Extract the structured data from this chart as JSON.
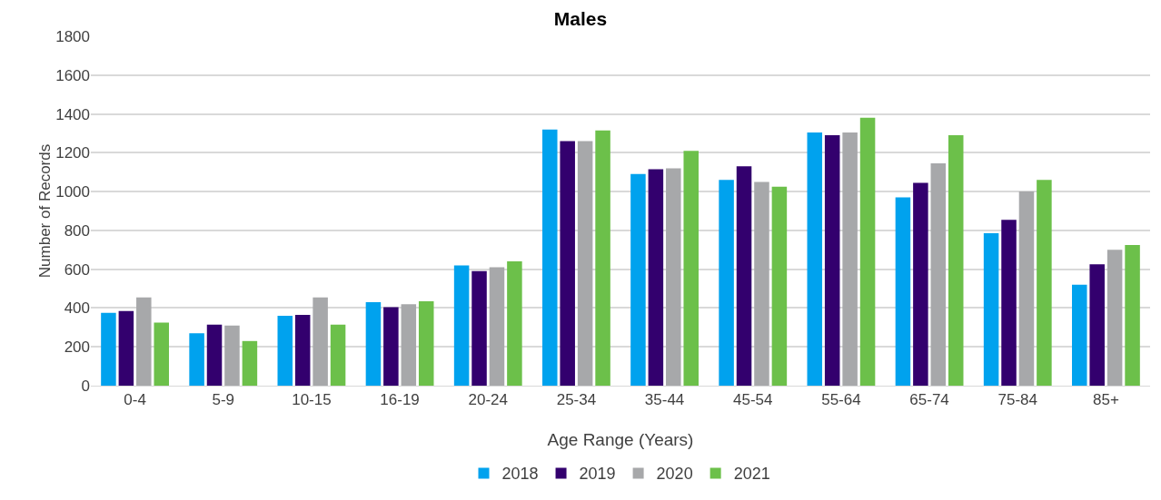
{
  "chart_data": {
    "type": "bar",
    "title": "Males",
    "xlabel": "Age Range (Years)",
    "ylabel": "Number of Records",
    "categories": [
      "0-4",
      "5-9",
      "10-15",
      "16-19",
      "20-24",
      "25-34",
      "35-44",
      "45-54",
      "55-64",
      "65-74",
      "75-84",
      "85+"
    ],
    "series": [
      {
        "name": "2018",
        "color": "#00a2ee",
        "values": [
          375,
          270,
          360,
          430,
          620,
          1320,
          1090,
          1060,
          1305,
          970,
          785,
          520
        ]
      },
      {
        "name": "2019",
        "color": "#33006e",
        "values": [
          385,
          315,
          365,
          405,
          590,
          1260,
          1115,
          1130,
          1290,
          1045,
          855,
          625
        ]
      },
      {
        "name": "2020",
        "color": "#a7a8aa",
        "values": [
          455,
          310,
          455,
          420,
          610,
          1260,
          1120,
          1050,
          1305,
          1145,
          1000,
          700
        ]
      },
      {
        "name": "2021",
        "color": "#6cc04a",
        "values": [
          325,
          230,
          315,
          435,
          640,
          1315,
          1210,
          1025,
          1380,
          1290,
          1060,
          725
        ]
      }
    ],
    "ylim": [
      0,
      1800
    ],
    "yticks": [
      0,
      200,
      400,
      600,
      800,
      1000,
      1200,
      1400,
      1600,
      1800
    ],
    "grid": "y",
    "legend": "bottom"
  }
}
